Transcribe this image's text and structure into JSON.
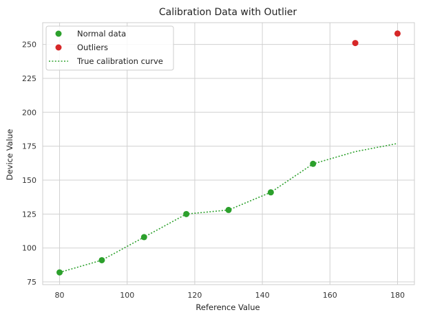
{
  "chart_data": {
    "type": "scatter",
    "title": "Calibration Data with Outlier",
    "xlabel": "Reference Value",
    "ylabel": "Device Value",
    "xlim": [
      75,
      185
    ],
    "ylim": [
      73,
      266
    ],
    "xticks": [
      80,
      100,
      120,
      140,
      160,
      180
    ],
    "yticks": [
      75,
      100,
      125,
      150,
      175,
      200,
      225,
      250
    ],
    "grid": true,
    "legend_position": "upper-left",
    "series": [
      {
        "name": "Normal data",
        "kind": "scatter",
        "color": "#2ca02c",
        "x": [
          80,
          92.5,
          105,
          117.5,
          130,
          142.5,
          155
        ],
        "y": [
          82,
          91,
          108,
          125,
          128,
          141,
          162
        ]
      },
      {
        "name": "Outliers",
        "kind": "scatter",
        "color": "#d62728",
        "x": [
          167.5,
          180
        ],
        "y": [
          251,
          258
        ]
      },
      {
        "name": "True calibration curve",
        "kind": "line",
        "style": "dotted",
        "color": "#2ca02c",
        "x": [
          80,
          92.5,
          105,
          117.5,
          130,
          142.5,
          155,
          167.5,
          180
        ],
        "y": [
          82,
          91,
          108,
          125,
          128,
          141,
          162,
          171,
          177
        ]
      }
    ]
  }
}
